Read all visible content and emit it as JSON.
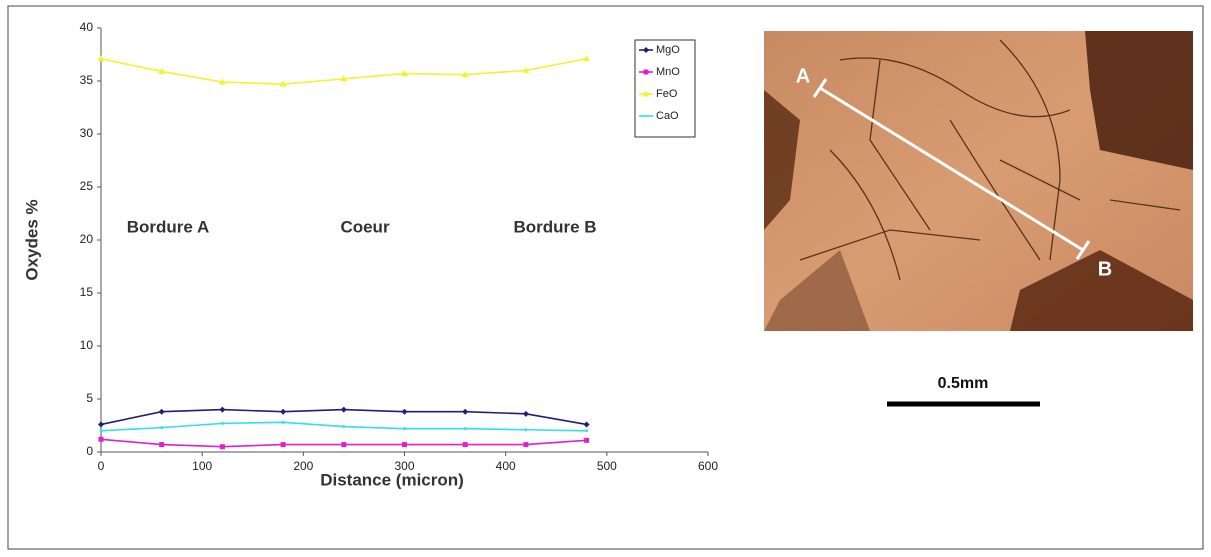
{
  "chart_data": {
    "type": "line",
    "x": [
      0,
      60,
      120,
      180,
      240,
      300,
      360,
      420,
      480
    ],
    "series": [
      {
        "name": "MgO",
        "color": "#1f1f7a",
        "marker": "diamond",
        "values": [
          2.6,
          3.8,
          4.0,
          3.8,
          4.0,
          3.8,
          3.8,
          3.6,
          2.6
        ]
      },
      {
        "name": "MnO",
        "color": "#e020d0",
        "marker": "square",
        "values": [
          1.2,
          0.7,
          0.5,
          0.7,
          0.7,
          0.7,
          0.7,
          0.7,
          1.1
        ]
      },
      {
        "name": "FeO",
        "color": "#f2f230",
        "marker": "triangle",
        "values": [
          37.1,
          35.9,
          34.9,
          34.7,
          35.2,
          35.7,
          35.6,
          36.0,
          37.1
        ]
      },
      {
        "name": "CaO",
        "color": "#30e0e8",
        "marker": "none",
        "values": [
          2.0,
          2.3,
          2.7,
          2.8,
          2.4,
          2.2,
          2.2,
          2.1,
          2.0
        ]
      }
    ],
    "xlim": [
      0,
      600
    ],
    "xticks": [
      0,
      100,
      200,
      300,
      400,
      500,
      600
    ],
    "ylim": [
      0,
      40
    ],
    "yticks": [
      0,
      5,
      10,
      15,
      20,
      25,
      30,
      35,
      40
    ],
    "xlabel": "Distance (micron)",
    "ylabel": "Oxydes %",
    "annotations": [
      "Bordure A",
      "Coeur",
      "Bordure B"
    ],
    "legend": "top-right",
    "grid": false
  },
  "image": {
    "point_labels": [
      "A",
      "B"
    ],
    "scale_bar": "0.5mm"
  }
}
